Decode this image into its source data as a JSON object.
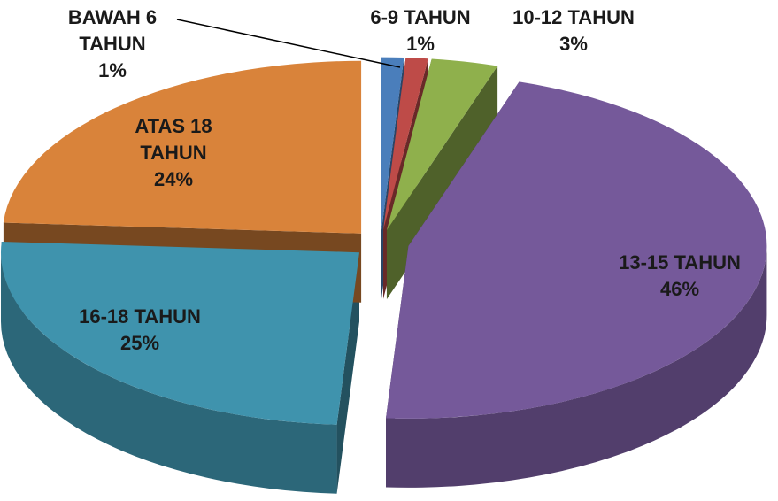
{
  "chart_data": {
    "type": "pie",
    "categories": [
      "BAWAH 6 TAHUN",
      "6-9 TAHUN",
      "10-12 TAHUN",
      "13-15 TAHUN",
      "16-18 TAHUN",
      "ATAS 18 TAHUN"
    ],
    "values": [
      1,
      1,
      3,
      46,
      25,
      24
    ],
    "value_labels": [
      "1%",
      "1%",
      "3%",
      "46%",
      "25%",
      "24%"
    ],
    "colors": [
      "#4a7ebb",
      "#be4b48",
      "#8fb04c",
      "#75599a",
      "#3f93ad",
      "#d9833a"
    ]
  }
}
